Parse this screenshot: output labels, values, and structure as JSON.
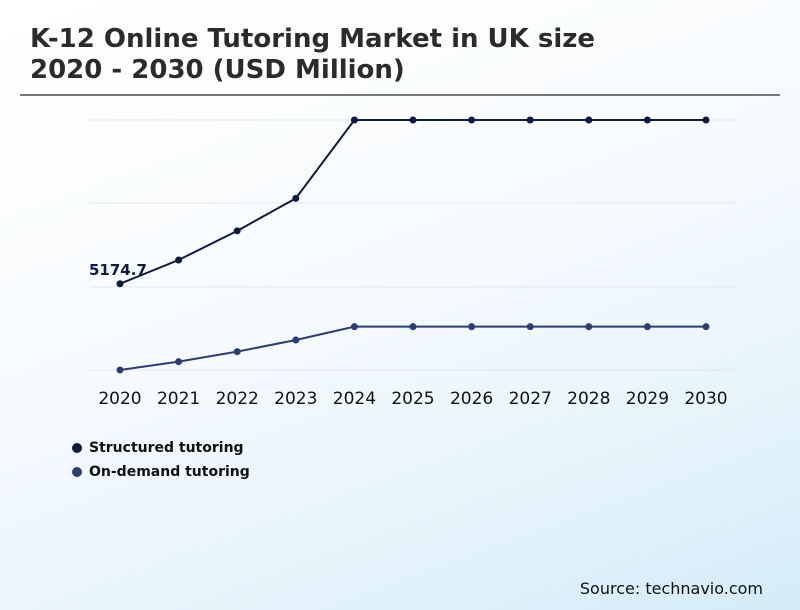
{
  "title_line1": "K-12 Online Tutoring Market in UK size",
  "title_line2": "2020 - 2030 (USD Million)",
  "source": "Source: technavio.com",
  "colors": {
    "structured": "#0d1b3e",
    "ondemand": "#2b3d73",
    "grid": "#e3e7ec"
  },
  "chart_data": {
    "type": "line",
    "title": "K-12 Online Tutoring Market in UK size 2020 - 2030 (USD Million)",
    "xlabel": "",
    "ylabel": "",
    "grid": true,
    "legend_position": "bottom-left",
    "x": [
      "2020",
      "2021",
      "2022",
      "2023",
      "2024",
      "2025",
      "2026",
      "2027",
      "2028",
      "2029",
      "2030"
    ],
    "ylim": [
      0,
      15000
    ],
    "series": [
      {
        "name": "Structured tutoring",
        "color": "#0d1b3e",
        "values": [
          5174.7,
          6600,
          8350,
          10300,
          15000,
          15000,
          15000,
          15000,
          15000,
          15000,
          15000
        ]
      },
      {
        "name": "On-demand tutoring",
        "color": "#2b3d73",
        "values": [
          0,
          500,
          1100,
          1800,
          2600,
          2600,
          2600,
          2600,
          2600,
          2600,
          2600
        ]
      }
    ],
    "data_labels": [
      {
        "series": 0,
        "index": 0,
        "text": "5174.7"
      }
    ]
  }
}
